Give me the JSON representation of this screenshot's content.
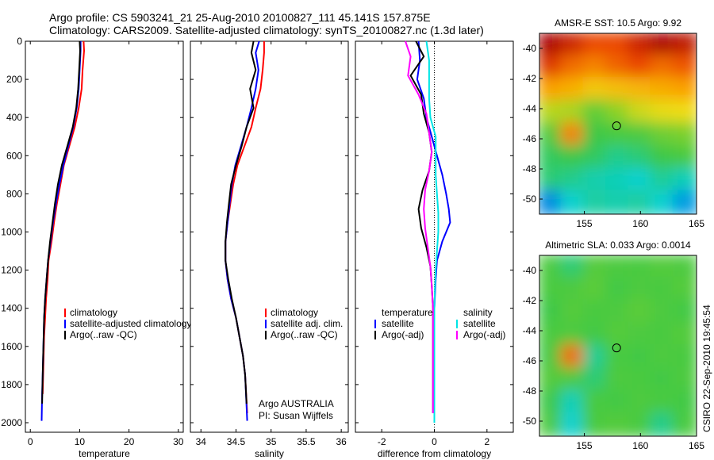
{
  "header": {
    "line1": "Argo profile: CS 5903241_21 25-Aug-2010 20100827_111 45.141S 157.875E",
    "line2": "Climatology: CARS2009. Satellite-adjusted climatology: synTS_20100827.nc (1.3d later)"
  },
  "signature": "CSIRO 22-Sep-2010 19:45:54",
  "colors": {
    "climatology": "#ff0000",
    "satellite": "#0000ff",
    "argo": "#000000",
    "sal_satellite": "#00e5e5",
    "sal_argo": "#ff00ff"
  },
  "chart_data": [
    {
      "type": "line",
      "panel": "temperature",
      "xlabel": "temperature",
      "ylabel": "",
      "xlim": [
        -1,
        31
      ],
      "ylim": [
        2050,
        0
      ],
      "xticks": [
        "0",
        "10",
        "20",
        "30"
      ],
      "yticks": [
        "0",
        "200",
        "400",
        "600",
        "800",
        "1000",
        "1200",
        "1400",
        "1600",
        "1800",
        "2000"
      ],
      "legend": [
        "climatology",
        "satellite-adjusted climatology",
        "Argo(..raw -QC)"
      ],
      "legend_position": "lower-right",
      "series": [
        {
          "name": "climatology",
          "color": "#ff0000",
          "x": [
            10.8,
            10.9,
            10.6,
            10.4,
            9.8,
            9.0,
            7.9,
            6.8,
            6.1,
            5.4,
            4.8,
            4.3,
            3.7,
            3.5,
            3.2,
            3.0,
            2.8,
            2.7,
            2.6,
            2.5
          ],
          "y": [
            0,
            50,
            150,
            250,
            350,
            450,
            550,
            650,
            750,
            850,
            950,
            1050,
            1150,
            1250,
            1350,
            1450,
            1550,
            1650,
            1750,
            1850
          ]
        },
        {
          "name": "satellite-adjusted climatology",
          "color": "#0000ff",
          "x": [
            10.2,
            10.2,
            10.0,
            9.8,
            9.4,
            8.7,
            7.7,
            6.7,
            5.9,
            5.2,
            4.6,
            4.1,
            3.6,
            3.3,
            3.0,
            2.8,
            2.7,
            2.6,
            2.5,
            2.4,
            2.3
          ],
          "y": [
            0,
            50,
            150,
            250,
            350,
            450,
            550,
            650,
            750,
            850,
            950,
            1050,
            1150,
            1250,
            1350,
            1450,
            1550,
            1650,
            1750,
            1850,
            1990
          ]
        },
        {
          "name": "Argo(..raw -QC)",
          "color": "#000000",
          "x": [
            10.0,
            10.1,
            9.9,
            9.7,
            9.3,
            8.6,
            7.5,
            6.4,
            5.6,
            5.0,
            4.5,
            4.0,
            3.6,
            3.3,
            3.0,
            2.8,
            2.7,
            2.6,
            2.5,
            2.4
          ],
          "y": [
            0,
            50,
            150,
            250,
            350,
            450,
            550,
            650,
            750,
            850,
            950,
            1050,
            1150,
            1250,
            1350,
            1450,
            1550,
            1650,
            1750,
            1900
          ]
        }
      ]
    },
    {
      "type": "line",
      "panel": "salinity",
      "xlabel": "salinity",
      "xlim": [
        33.85,
        36.1
      ],
      "ylim": [
        2050,
        0
      ],
      "xticks": [
        "34",
        "34.5",
        "35",
        "35.5",
        "36"
      ],
      "legend": [
        "climatology",
        "satellite adj. clim.",
        "Argo(..raw -QC)"
      ],
      "legend_position": "lower-right",
      "annotation": [
        "Argo AUSTRALIA",
        "PI: Susan Wijffels"
      ],
      "series": [
        {
          "name": "climatology",
          "color": "#ff0000",
          "x": [
            34.9,
            34.9,
            34.88,
            34.85,
            34.78,
            34.72,
            34.62,
            34.52,
            34.46,
            34.42,
            34.38,
            34.35,
            34.35,
            34.38,
            34.43,
            34.5,
            34.55,
            34.6,
            34.63,
            34.66
          ],
          "y": [
            0,
            60,
            150,
            250,
            350,
            450,
            550,
            650,
            750,
            850,
            950,
            1050,
            1150,
            1250,
            1350,
            1450,
            1550,
            1650,
            1750,
            1950
          ]
        },
        {
          "name": "satellite adj. clim.",
          "color": "#0000ff",
          "x": [
            34.83,
            34.78,
            34.82,
            34.78,
            34.72,
            34.65,
            34.57,
            34.49,
            34.44,
            34.41,
            34.38,
            34.35,
            34.35,
            34.38,
            34.43,
            34.5,
            34.55,
            34.6,
            34.63,
            34.66
          ],
          "y": [
            0,
            60,
            150,
            250,
            350,
            450,
            550,
            650,
            750,
            850,
            950,
            1050,
            1150,
            1250,
            1350,
            1450,
            1550,
            1650,
            1750,
            1990
          ]
        },
        {
          "name": "Argo(..raw -QC)",
          "color": "#000000",
          "x": [
            34.75,
            34.72,
            34.78,
            34.7,
            34.75,
            34.65,
            34.58,
            34.5,
            34.43,
            34.4,
            34.37,
            34.35,
            34.35,
            34.39,
            34.44,
            34.5,
            34.55,
            34.6,
            34.63,
            34.65
          ],
          "y": [
            0,
            60,
            150,
            250,
            350,
            450,
            550,
            650,
            750,
            850,
            950,
            1050,
            1150,
            1250,
            1350,
            1450,
            1550,
            1650,
            1750,
            1900
          ]
        }
      ]
    },
    {
      "type": "line",
      "panel": "difference",
      "xlabel": "difference from climatology",
      "xlim": [
        -3,
        3
      ],
      "ylim": [
        2050,
        0
      ],
      "xticks": [
        "-2",
        "0",
        "2"
      ],
      "legend_groups": [
        {
          "title": "temperature",
          "entries": [
            "satellite",
            "Argo(-adj)"
          ]
        },
        {
          "title": "salinity",
          "entries": [
            "satellite",
            "Argo(-adj)"
          ]
        }
      ],
      "legend_position": "lower-center",
      "series": [
        {
          "name": "temperature satellite",
          "color": "#0000ff",
          "x": [
            -0.6,
            -0.55,
            -0.65,
            -0.4,
            -0.3,
            -0.1,
            0.1,
            0.3,
            0.45,
            0.55,
            0.6,
            0.3,
            0.1,
            0.05,
            0.0,
            0.0,
            0.0,
            0.0,
            0.0,
            0.0
          ],
          "y": [
            0,
            100,
            200,
            300,
            400,
            500,
            600,
            700,
            800,
            880,
            950,
            1050,
            1150,
            1250,
            1400,
            1600,
            1800,
            1900,
            1950,
            1990
          ]
        },
        {
          "name": "temperature Argo(-adj)",
          "color": "#000000",
          "x": [
            -0.7,
            -0.4,
            -0.9,
            -0.5,
            -0.4,
            -0.2,
            -0.1,
            -0.2,
            -0.45,
            -0.6,
            -0.5,
            -0.3,
            -0.15,
            -0.1,
            -0.05,
            -0.05,
            -0.05,
            -0.05,
            -0.05,
            -0.05
          ],
          "y": [
            0,
            80,
            180,
            280,
            380,
            480,
            580,
            680,
            780,
            880,
            980,
            1080,
            1180,
            1280,
            1400,
            1550,
            1700,
            1800,
            1900,
            1950
          ]
        },
        {
          "name": "salinity satellite",
          "color": "#00e5e5",
          "x": [
            -0.3,
            -0.2,
            -0.2,
            -0.2,
            -0.15,
            0.05,
            0.05,
            0.05,
            0.1,
            0.15,
            0.15,
            0.1,
            0.05,
            0.02,
            0.0,
            0.0,
            0.0,
            0.0,
            0.0,
            0.0
          ],
          "y": [
            0,
            100,
            200,
            300,
            400,
            500,
            600,
            700,
            800,
            900,
            1000,
            1100,
            1200,
            1300,
            1400,
            1550,
            1700,
            1850,
            1950,
            2000
          ]
        },
        {
          "name": "salinity Argo(-adj)",
          "color": "#ff00ff",
          "x": [
            -1.1,
            -0.9,
            -1.0,
            -0.6,
            -0.3,
            -0.2,
            -0.1,
            -0.2,
            -0.35,
            -0.4,
            -0.35,
            -0.25,
            -0.15,
            -0.1,
            -0.05,
            -0.05,
            -0.05,
            -0.05,
            -0.05,
            -0.05
          ],
          "y": [
            0,
            80,
            180,
            280,
            380,
            480,
            580,
            680,
            780,
            880,
            980,
            1080,
            1180,
            1280,
            1400,
            1550,
            1700,
            1800,
            1900,
            1950
          ]
        }
      ]
    },
    {
      "type": "heatmap",
      "panel": "sst_map",
      "title": "AMSR-E SST: 10.5 Argo: 9.92",
      "xlim": [
        151,
        165
      ],
      "ylim": [
        -51,
        -39
      ],
      "xticks": [
        "155",
        "160",
        "165"
      ],
      "yticks": [
        "-40",
        "-42",
        "-44",
        "-46",
        "-48",
        "-50"
      ],
      "marker": {
        "lon": 157.875,
        "lat": -45.141
      },
      "field": [
        [
          1.0,
          0.95,
          0.9,
          0.9,
          0.95,
          1.0,
          0.97
        ],
        [
          0.92,
          0.85,
          0.82,
          0.86,
          0.9,
          0.85,
          0.88
        ],
        [
          0.78,
          0.75,
          0.7,
          0.72,
          0.74,
          0.76,
          0.78
        ],
        [
          0.6,
          0.58,
          0.48,
          0.55,
          0.62,
          0.65,
          0.66
        ],
        [
          0.45,
          0.82,
          0.42,
          0.44,
          0.45,
          0.5,
          0.52
        ],
        [
          0.4,
          0.42,
          0.4,
          0.36,
          0.38,
          0.42,
          0.44
        ],
        [
          0.38,
          0.36,
          0.33,
          0.32,
          0.3,
          0.35,
          0.32
        ],
        [
          0.2,
          0.3,
          0.34,
          0.33,
          0.34,
          0.3,
          0.22
        ]
      ]
    },
    {
      "type": "heatmap",
      "panel": "sla_map",
      "title": "Altimetric SLA: 0.033 Argo: 0.0014",
      "xlim": [
        151,
        165
      ],
      "ylim": [
        -51,
        -39
      ],
      "xticks": [
        "155",
        "160",
        "165"
      ],
      "yticks": [
        "-40",
        "-42",
        "-44",
        "-46",
        "-48",
        "-50"
      ],
      "marker": {
        "lon": 157.875,
        "lat": -45.141
      },
      "field": [
        [
          0.45,
          0.38,
          0.46,
          0.45,
          0.44,
          0.46,
          0.45
        ],
        [
          0.44,
          0.45,
          0.47,
          0.43,
          0.45,
          0.44,
          0.46
        ],
        [
          0.42,
          0.46,
          0.44,
          0.45,
          0.47,
          0.45,
          0.43
        ],
        [
          0.44,
          0.45,
          0.43,
          0.46,
          0.45,
          0.44,
          0.46
        ],
        [
          0.43,
          0.85,
          0.35,
          0.44,
          0.43,
          0.45,
          0.44
        ],
        [
          0.46,
          0.45,
          0.38,
          0.45,
          0.44,
          0.43,
          0.45
        ],
        [
          0.42,
          0.32,
          0.44,
          0.43,
          0.45,
          0.44,
          0.43
        ],
        [
          0.45,
          0.3,
          0.44,
          0.46,
          0.44,
          0.36,
          0.44
        ]
      ]
    }
  ]
}
